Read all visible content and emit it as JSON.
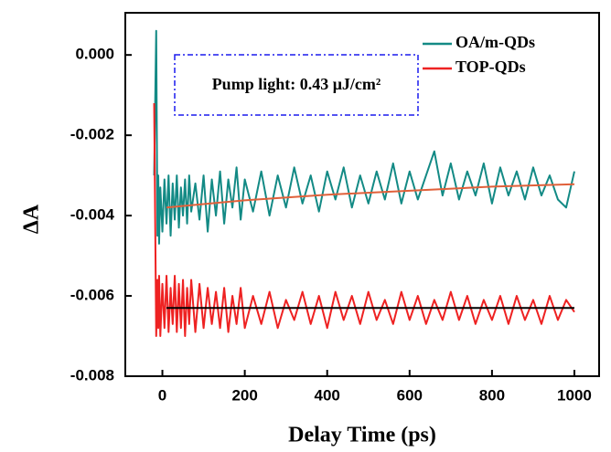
{
  "chart_data": {
    "type": "line",
    "x_label": "Delay Time (ps)",
    "y_label": "ΔA",
    "annotation": "Pump light: 0.43 μJ/cm²",
    "xlim": [
      -90,
      1060
    ],
    "ylim": [
      -0.008,
      0.00105
    ],
    "xticks": [
      0,
      200,
      400,
      600,
      800,
      1000
    ],
    "yticks": [
      {
        "value": 0,
        "label": "0.000"
      },
      {
        "value": -0.002,
        "label": "-0.002"
      },
      {
        "value": -0.004,
        "label": "-0.004"
      },
      {
        "value": -0.006,
        "label": "-0.006"
      },
      {
        "value": -0.008,
        "label": "-0.008"
      }
    ],
    "legend": "upper right",
    "x": [
      -20,
      -15,
      -12,
      -10,
      -8,
      -5,
      0,
      5,
      10,
      15,
      20,
      25,
      30,
      35,
      40,
      45,
      50,
      55,
      60,
      65,
      70,
      80,
      90,
      100,
      110,
      120,
      130,
      140,
      150,
      160,
      170,
      180,
      190,
      200,
      220,
      240,
      260,
      280,
      300,
      320,
      340,
      360,
      380,
      400,
      420,
      440,
      460,
      480,
      500,
      520,
      540,
      560,
      580,
      600,
      620,
      640,
      660,
      680,
      700,
      720,
      740,
      760,
      780,
      800,
      820,
      840,
      860,
      880,
      900,
      920,
      940,
      960,
      980,
      1000
    ],
    "series": [
      {
        "name": "OA/m-QDs",
        "color": "#138a85",
        "values": [
          -0.003,
          0.0006,
          -0.0045,
          -0.003,
          -0.0047,
          -0.0033,
          -0.0044,
          -0.0031,
          -0.0042,
          -0.003,
          -0.0045,
          -0.0032,
          -0.0041,
          -0.003,
          -0.0043,
          -0.0033,
          -0.004,
          -0.0031,
          -0.0042,
          -0.003,
          -0.0039,
          -0.0032,
          -0.0041,
          -0.003,
          -0.0044,
          -0.0031,
          -0.004,
          -0.0029,
          -0.0042,
          -0.0031,
          -0.0038,
          -0.0028,
          -0.0041,
          -0.0031,
          -0.0039,
          -0.0029,
          -0.004,
          -0.003,
          -0.0038,
          -0.0028,
          -0.0037,
          -0.003,
          -0.0039,
          -0.0029,
          -0.0036,
          -0.0028,
          -0.0038,
          -0.003,
          -0.0037,
          -0.0029,
          -0.0036,
          -0.0027,
          -0.0037,
          -0.0029,
          -0.0036,
          -0.003,
          -0.0024,
          -0.0035,
          -0.0027,
          -0.0036,
          -0.0029,
          -0.0035,
          -0.0027,
          -0.0037,
          -0.0028,
          -0.0035,
          -0.0029,
          -0.0036,
          -0.0028,
          -0.0035,
          -0.003,
          -0.0036,
          -0.0038,
          -0.0029
        ]
      },
      {
        "name": "TOP-QDs",
        "color": "#ee2222",
        "values": [
          -0.0012,
          -0.007,
          -0.0056,
          -0.0068,
          -0.0055,
          -0.007,
          -0.0057,
          -0.0068,
          -0.0055,
          -0.0069,
          -0.0058,
          -0.0067,
          -0.0055,
          -0.0069,
          -0.0057,
          -0.0068,
          -0.0056,
          -0.007,
          -0.0058,
          -0.0067,
          -0.0056,
          -0.0069,
          -0.0057,
          -0.0068,
          -0.0058,
          -0.0067,
          -0.0059,
          -0.0068,
          -0.0058,
          -0.0069,
          -0.006,
          -0.0067,
          -0.0058,
          -0.0068,
          -0.006,
          -0.0067,
          -0.0059,
          -0.0068,
          -0.0061,
          -0.0066,
          -0.0059,
          -0.0067,
          -0.006,
          -0.0068,
          -0.0059,
          -0.0066,
          -0.006,
          -0.0067,
          -0.0059,
          -0.0066,
          -0.0061,
          -0.0067,
          -0.0059,
          -0.0066,
          -0.006,
          -0.0067,
          -0.0061,
          -0.0066,
          -0.0059,
          -0.0066,
          -0.006,
          -0.0067,
          -0.0061,
          -0.0066,
          -0.006,
          -0.0067,
          -0.006,
          -0.0066,
          -0.0061,
          -0.0067,
          -0.006,
          -0.0066,
          -0.0061,
          -0.0064
        ]
      }
    ],
    "fits": [
      {
        "color": "#e0603a",
        "x": [
          10,
          200,
          400,
          600,
          800,
          1000
        ],
        "values": [
          -0.0038,
          -0.00362,
          -0.00348,
          -0.00338,
          -0.00328,
          -0.00322
        ]
      },
      {
        "color": "#000000",
        "x": [
          10,
          1000
        ],
        "values": [
          -0.0063,
          -0.0063
        ]
      }
    ]
  }
}
